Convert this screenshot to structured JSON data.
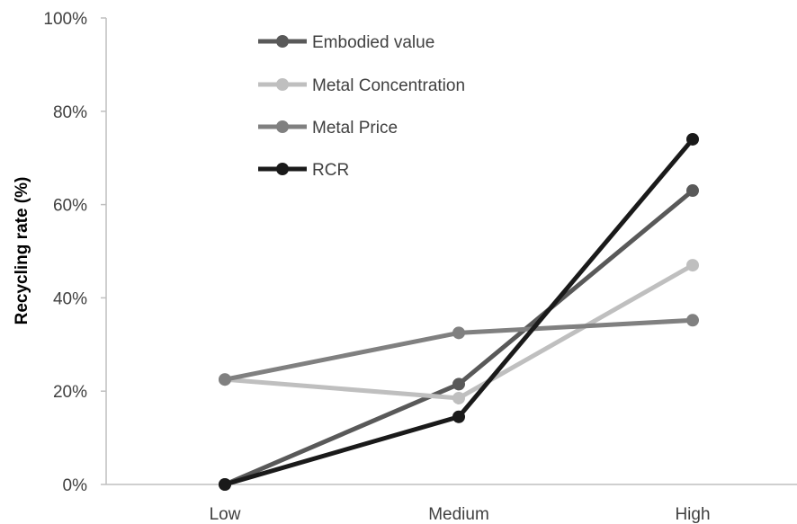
{
  "chart_data": {
    "type": "line",
    "title": "",
    "xlabel": "",
    "ylabel": "Recycling rate (%)",
    "categories": [
      "Low",
      "Medium",
      "High"
    ],
    "ylim": [
      0,
      100
    ],
    "yticks": [
      "0%",
      "20%",
      "40%",
      "60%",
      "80%",
      "100%"
    ],
    "ytick_values": [
      0,
      20,
      40,
      60,
      80,
      100
    ],
    "grid": false,
    "legend_position": "top-center",
    "series": [
      {
        "name": "Embodied value",
        "values": [
          0,
          21.5,
          63
        ],
        "color": "#595959",
        "width": 5
      },
      {
        "name": "Metal Concentration",
        "values": [
          22.5,
          18.5,
          47
        ],
        "color": "#bfbfbf",
        "width": 5
      },
      {
        "name": "Metal Price",
        "values": [
          22.5,
          32.5,
          35.2
        ],
        "color": "#808080",
        "width": 5
      },
      {
        "name": "RCR",
        "values": [
          0,
          14.5,
          74
        ],
        "color": "#1a1a1a",
        "width": 5
      }
    ]
  }
}
